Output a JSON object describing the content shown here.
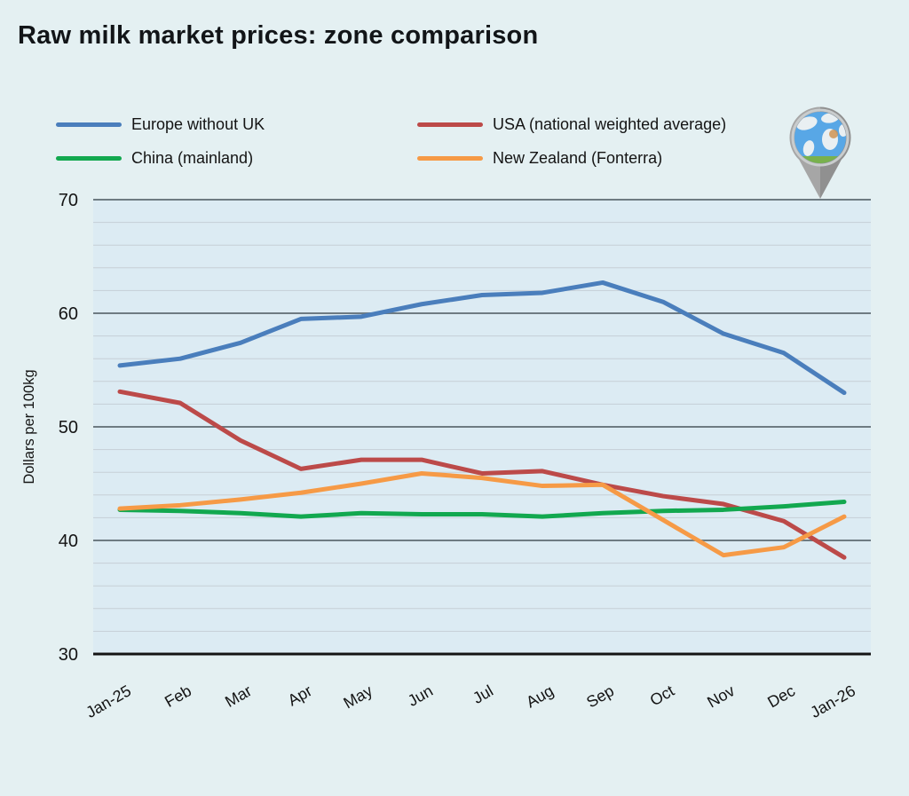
{
  "header": {
    "title": "Raw milk market prices: zone comparison"
  },
  "legend": {
    "items": [
      {
        "label": "Europe without UK",
        "color": "#4a7ebc"
      },
      {
        "label": "USA (national weighted average)",
        "color": "#bc4a49"
      },
      {
        "label": "China (mainland)",
        "color": "#12a84f"
      },
      {
        "label": "New Zealand (Fonterra)",
        "color": "#f69a46"
      }
    ]
  },
  "icons": {
    "globe_pin": "globe-map-pin"
  },
  "palette": {
    "page_bg": "#e4f0f2",
    "plot_bg": "#dcebf3",
    "grid_minor": "#c6cfd6",
    "grid_major": "#6e7b82",
    "axis_line": "#141414",
    "text": "#141414"
  },
  "chart_data": {
    "type": "line",
    "title": "Raw milk market prices: zone comparison",
    "xlabel": "",
    "ylabel": "Dollars per 100kg",
    "ylim": [
      30,
      70
    ],
    "y_major_ticks": [
      30,
      40,
      50,
      60,
      70
    ],
    "y_minor_step": 2,
    "grid": "horizontal",
    "legend_position": "top",
    "categories": [
      "Jan-25",
      "Feb",
      "Mar",
      "Apr",
      "May",
      "Jun",
      "Jul",
      "Aug",
      "Sep",
      "Oct",
      "Nov",
      "Dec",
      "Jan-26"
    ],
    "series": [
      {
        "name": "Europe without UK",
        "color": "#4a7ebc",
        "values": [
          55.4,
          56.0,
          57.4,
          59.5,
          59.7,
          60.8,
          61.6,
          61.8,
          62.7,
          61.0,
          58.2,
          56.5,
          53.0
        ]
      },
      {
        "name": "USA (national weighted average)",
        "color": "#bc4a49",
        "values": [
          53.1,
          52.1,
          48.8,
          46.3,
          47.1,
          47.1,
          45.9,
          46.1,
          44.9,
          43.9,
          43.2,
          41.7,
          38.5
        ]
      },
      {
        "name": "China (mainland)",
        "color": "#12a84f",
        "values": [
          42.7,
          42.6,
          42.4,
          42.1,
          42.4,
          42.3,
          42.3,
          42.1,
          42.4,
          42.6,
          42.7,
          43.0,
          43.4
        ]
      },
      {
        "name": "New Zealand (Fonterra)",
        "color": "#f69a46",
        "values": [
          42.8,
          43.1,
          43.6,
          44.2,
          45.0,
          45.9,
          45.5,
          44.8,
          44.9,
          41.8,
          38.7,
          39.4,
          42.1
        ]
      }
    ]
  }
}
